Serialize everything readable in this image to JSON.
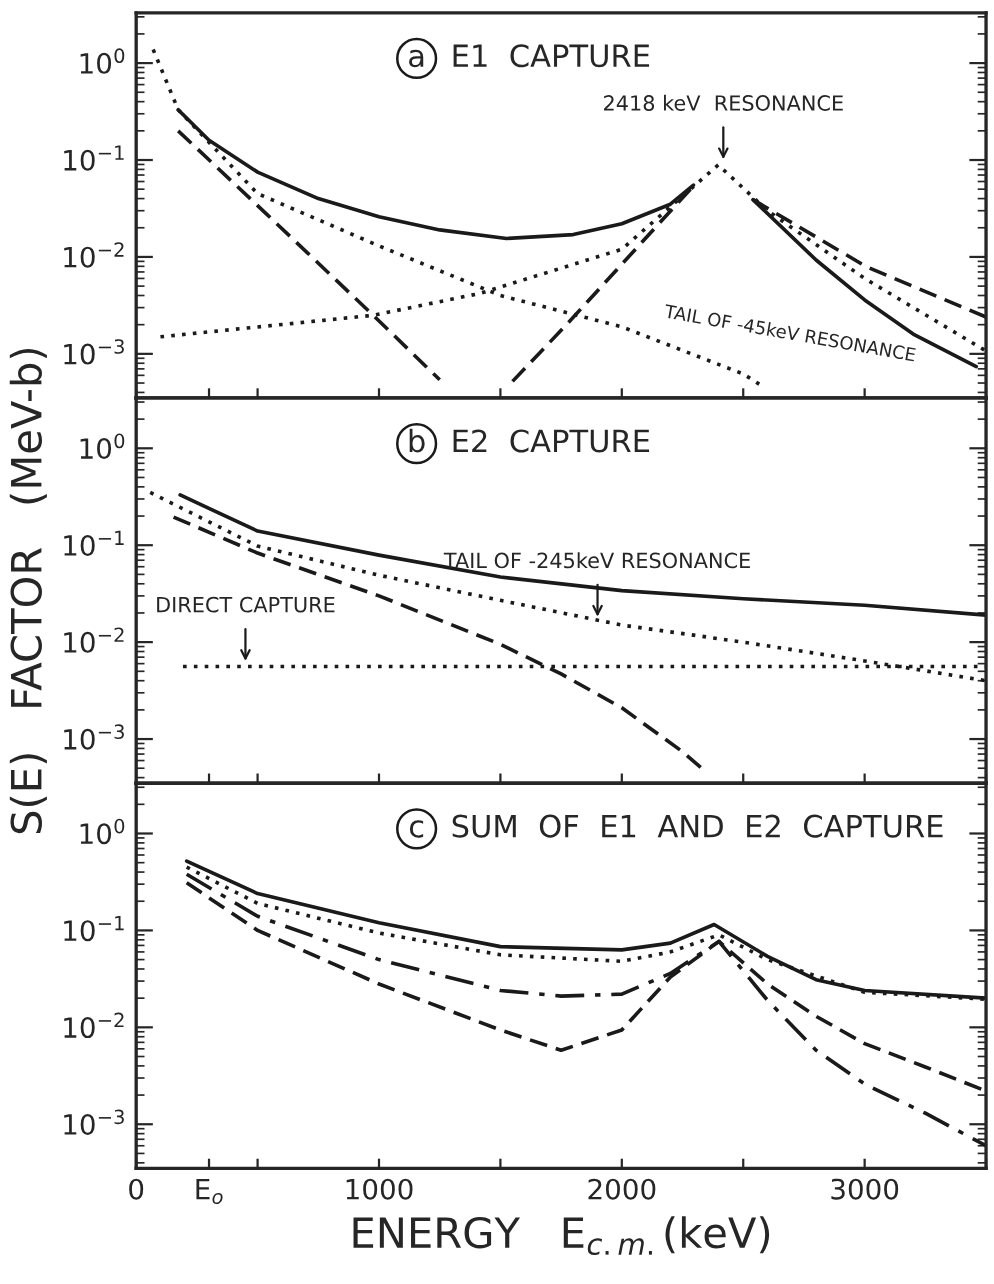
{
  "chart_data": [
    {
      "type": "line",
      "title": "a  E1  CAPTURE",
      "log": "y",
      "legend": false,
      "grid": false,
      "tick_labels": "y",
      "xlim": [
        0,
        3500
      ],
      "xticks": [
        0,
        {
          "value": 300,
          "label": null
        },
        {
          "value": 500,
          "label": null
        },
        1000,
        {
          "value": 1500,
          "label": null
        },
        2000,
        {
          "value": 2500,
          "label": null
        },
        3000,
        {
          "value": 3500,
          "label": null
        }
      ],
      "ylim": [
        0.00035,
        3.3
      ],
      "yticks": [
        {
          "value": 1,
          "label": "10$^{0}$"
        },
        {
          "value": 0.1,
          "label": "10$^{−1}$"
        },
        {
          "value": 0.01,
          "label": "10$^{−2}$"
        },
        {
          "value": 0.001,
          "label": "10$^{−3}$"
        }
      ],
      "annotations": [
        {
          "text": "2418 keV  RESONANCE",
          "x": 2418,
          "y": 0.089
        },
        "TAIL OF -45keV RESONANCE"
      ],
      "series": [
        {
          "color": "#1a1a1a",
          "line_style": "solid",
          "x": [
            173,
            300,
            500,
            750,
            1000,
            1250,
            1525,
            1800,
            2000,
            2200,
            2295,
            2418,
            2540,
            2800,
            3000,
            3200,
            3460
          ],
          "values": [
            0.33,
            0.16,
            0.075,
            0.04,
            0.026,
            0.019,
            0.0155,
            0.017,
            0.022,
            0.035,
            0.055,
            null,
            0.039,
            0.0093,
            0.0036,
            0.0016,
            0.00074
          ]
        },
        {
          "color": "#1a1a1a",
          "line_style": "dashed",
          "x": [
            173,
            535,
            976,
            1250,
            1400,
            1550,
            1772,
            2295,
            2418,
            2540,
            3008,
            3500
          ],
          "values": [
            0.2,
            0.028,
            0.0025,
            0.00054,
            null,
            0.00052,
            0.002,
            0.054,
            null,
            0.039,
            0.0079,
            0.0024
          ]
        },
        {
          "color": "#1a1a1a",
          "line_style": "dotted",
          "x": [
            70,
            173,
            500,
            1000,
            1500,
            2000,
            2500,
            2570
          ],
          "values": [
            1.38,
            0.33,
            0.045,
            0.013,
            0.004,
            0.0019,
            0.00062,
            0.00048
          ]
        },
        {
          "color": "#1a1a1a",
          "line_style": "dotted",
          "x": [
            100,
            976,
            1415,
            2000,
            2397,
            2600,
            3000,
            3500
          ],
          "values": [
            0.0015,
            0.0025,
            0.0042,
            0.012,
            0.089,
            0.03,
            0.006,
            0.00107
          ]
        }
      ]
    },
    {
      "type": "line",
      "title": "b  E2  CAPTURE",
      "ylabel": "S(E)   FACTOR   (MeV-b)",
      "log": "y",
      "legend": false,
      "grid": false,
      "tick_labels": "y",
      "xlim": [
        0,
        3500
      ],
      "xticks": [
        0,
        {
          "value": 300,
          "label": null
        },
        {
          "value": 500,
          "label": null
        },
        1000,
        {
          "value": 1500,
          "label": null
        },
        2000,
        {
          "value": 2500,
          "label": null
        },
        3000,
        {
          "value": 3500,
          "label": null
        }
      ],
      "ylim": [
        0.00035,
        3.3
      ],
      "yticks": [
        {
          "value": 1,
          "label": "10$^{0}$"
        },
        {
          "value": 0.1,
          "label": "10$^{−1}$"
        },
        {
          "value": 0.01,
          "label": "10$^{−2}$"
        },
        {
          "value": 0.001,
          "label": "10$^{−3}$"
        }
      ],
      "annotations": [
        {
          "text": "DIRECT CAPTURE",
          "x": 450,
          "y": 0.0056
        },
        {
          "text": "TAIL OF -245keV RESONANCE",
          "x": 1900,
          "y": 0.016
        }
      ],
      "series": [
        {
          "color": "#1a1a1a",
          "line_style": "solid",
          "x": [
            181,
            500,
            1000,
            1500,
            2000,
            2500,
            3000,
            3500
          ],
          "values": [
            0.33,
            0.14,
            0.079,
            0.047,
            0.034,
            0.028,
            0.024,
            0.019
          ]
        },
        {
          "color": "#1a1a1a",
          "line_style": "dotted",
          "x": [
            58,
            500,
            1000,
            1500,
            2000,
            2500,
            3000,
            3500
          ],
          "values": [
            0.35,
            0.098,
            0.049,
            0.027,
            0.015,
            0.01,
            0.0064,
            0.004
          ]
        },
        {
          "color": "#1a1a1a",
          "line_style": "dotted",
          "x": [
            193,
            3500
          ],
          "values": [
            0.0056,
            0.0056
          ]
        },
        {
          "color": "#1a1a1a",
          "line_style": "dashed",
          "x": [
            154,
            500,
            1000,
            1500,
            1750,
            2000,
            2250,
            2350
          ],
          "values": [
            0.195,
            0.083,
            0.03,
            0.0095,
            0.0047,
            0.0021,
            0.00074,
            0.00045
          ]
        }
      ]
    },
    {
      "type": "line",
      "title": "c  SUM  OF  E1  AND  E2  CAPTURE",
      "xlabel": "ENERGY   E$_{c.m.}$(keV)",
      "log": "y",
      "legend": false,
      "grid": false,
      "xlim": [
        0,
        3500
      ],
      "xticks": [
        0,
        {
          "value": 300,
          "label": "E$_{o}$"
        },
        {
          "value": 500,
          "label": null
        },
        1000,
        {
          "value": 1500,
          "label": null
        },
        2000,
        {
          "value": 2500,
          "label": null
        },
        3000,
        {
          "value": 3500,
          "label": null
        }
      ],
      "ylim": [
        0.00035,
        3.3
      ],
      "yticks": [
        {
          "value": 1,
          "label": "10$^{0}$"
        },
        {
          "value": 0.1,
          "label": "10$^{−1}$"
        },
        {
          "value": 0.01,
          "label": "10$^{−2}$"
        },
        {
          "value": 0.001,
          "label": "10$^{−3}$"
        }
      ],
      "series": [
        {
          "color": "#1a1a1a",
          "line_style": "solid",
          "x": [
            208,
            500,
            1000,
            1500,
            2000,
            2200,
            2380,
            2600,
            2800,
            3000,
            3500
          ],
          "values": [
            0.52,
            0.24,
            0.12,
            0.068,
            0.063,
            0.074,
            0.115,
            0.054,
            0.031,
            0.024,
            0.02
          ]
        },
        {
          "color": "#1a1a1a",
          "line_style": "dotted",
          "x": [
            208,
            500,
            1000,
            1500,
            2000,
            2200,
            2400,
            2600,
            3000,
            3500
          ],
          "values": [
            0.45,
            0.19,
            0.094,
            0.056,
            0.048,
            0.06,
            0.09,
            0.05,
            0.023,
            0.0195
          ]
        },
        {
          "color": "#1a1a1a",
          "line_style": "dashdot",
          "x": [
            208,
            500,
            1000,
            1500,
            1750,
            2000,
            2200,
            2400,
            2600,
            2800,
            3000,
            3250,
            3500
          ],
          "values": [
            0.38,
            0.14,
            0.05,
            0.024,
            0.021,
            0.022,
            0.036,
            0.077,
            0.019,
            0.0058,
            0.0026,
            0.0013,
            0.0006
          ]
        },
        {
          "color": "#1a1a1a",
          "line_style": "dashed",
          "x": [
            208,
            500,
            1000,
            1500,
            1750,
            2000,
            2200,
            2400,
            2600,
            2800,
            3000,
            3250,
            3500
          ],
          "values": [
            0.31,
            0.1,
            0.028,
            0.0094,
            0.0058,
            0.0094,
            0.033,
            0.077,
            0.028,
            0.013,
            0.0068,
            0.0039,
            0.0022
          ]
        }
      ]
    }
  ]
}
